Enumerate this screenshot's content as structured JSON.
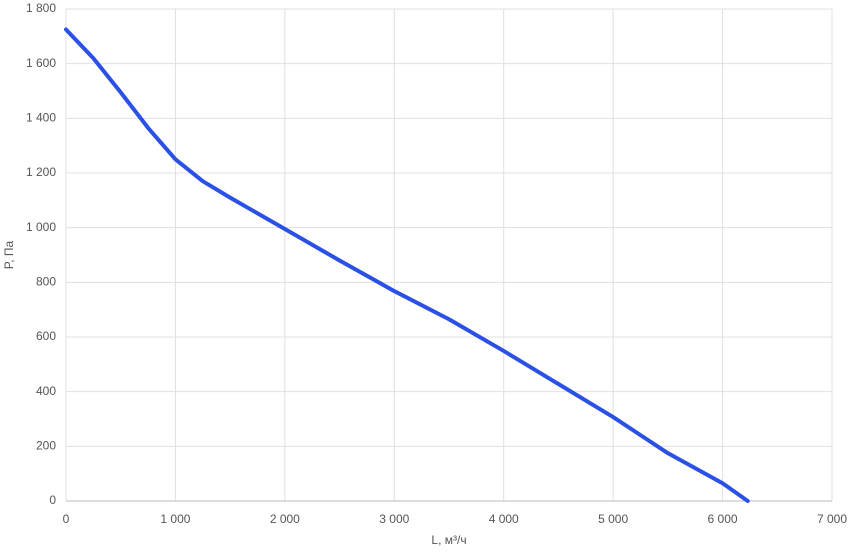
{
  "chart_data": {
    "type": "line",
    "x_label": "L, м³/ч",
    "y_label": "P, Па",
    "x": [
      0,
      250,
      500,
      750,
      1000,
      1250,
      1500,
      2000,
      2500,
      3000,
      3500,
      4000,
      4500,
      5000,
      5500,
      6000,
      6230
    ],
    "series": [
      {
        "name": "P",
        "color": "#2a50e6",
        "values": [
          1725,
          1620,
          1495,
          1365,
          1250,
          1170,
          1110,
          995,
          880,
          768,
          665,
          549,
          428,
          307,
          175,
          65,
          0
        ]
      }
    ],
    "xlim": [
      0,
      7000
    ],
    "xticks": [
      0,
      {
        "value": 1000,
        "label": "1 000"
      },
      {
        "value": 2000,
        "label": "2 000"
      },
      {
        "value": 3000,
        "label": "3 000"
      },
      {
        "value": 4000,
        "label": "4 000"
      },
      {
        "value": 5000,
        "label": "5 000"
      },
      {
        "value": 6000,
        "label": "6 000"
      },
      {
        "value": 7000,
        "label": "7 000"
      }
    ],
    "ylim": [
      0,
      1800
    ],
    "yticks": [
      0,
      200,
      400,
      600,
      800,
      {
        "value": 1000,
        "label": "1 000"
      },
      {
        "value": 1200,
        "label": "1 200"
      },
      {
        "value": 1400,
        "label": "1 400"
      },
      {
        "value": 1600,
        "label": "1 600"
      },
      {
        "value": 1800,
        "label": "1 800"
      }
    ],
    "grid": true
  }
}
